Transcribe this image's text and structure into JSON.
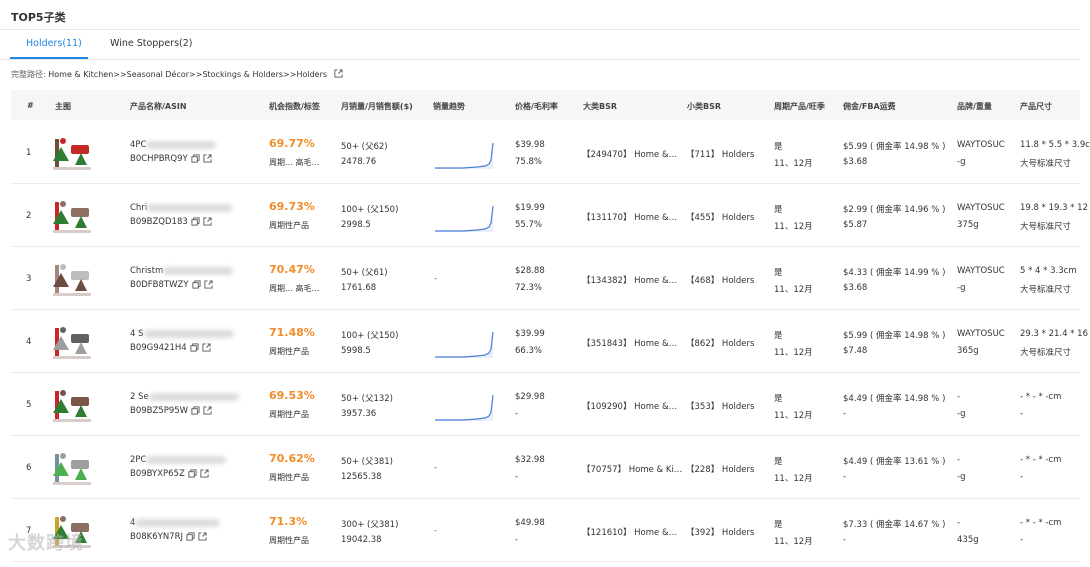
{
  "header": {
    "title": "TOP5子类"
  },
  "tabs": [
    {
      "label": "Holders(11)",
      "active": true
    },
    {
      "label": "Wine Stoppers(2)",
      "active": false
    }
  ],
  "path": {
    "label": "完整路径:",
    "value": "Home & Kitchen>>Seasonal Décor>>Stockings & Holders>>Holders"
  },
  "columns": [
    "#",
    "主图",
    "产品名称/ASIN",
    "机会指数/标签",
    "月销量/月销售额($)",
    "销量趋势",
    "价格/毛利率",
    "大类BSR",
    "小类BSR",
    "周期产品/旺季",
    "佣金/FBA运费",
    "品牌/重量",
    "产品尺寸"
  ],
  "rows": [
    {
      "index": "1",
      "name": "4PC",
      "asin": "B0CHPBRQ9Y",
      "score": "69.77%",
      "tag": "周期… 高毛…",
      "sales": "50+ (父62)",
      "revenue": "2478.76",
      "trend": true,
      "price": "$39.98",
      "margin": "75.8%",
      "bsr": "【249470】 Home &…",
      "sub_bsr": "【711】 Holders",
      "periodic": "是",
      "season": "11、12月",
      "fee": "$5.99 ( 佣金率 14.98 % )",
      "fba": "$3.68",
      "brand": "WAYTOSUC",
      "weight": "-g",
      "size": "11.8 * 5.5 * 3.9c",
      "size_class": "大号标准尺寸"
    },
    {
      "index": "2",
      "name": "Chri",
      "asin": "B09BZQD183",
      "score": "69.73%",
      "tag": "周期性产品",
      "sales": "100+ (父150)",
      "revenue": "2998.5",
      "trend": true,
      "price": "$19.99",
      "margin": "55.7%",
      "bsr": "【131170】 Home &…",
      "sub_bsr": "【455】 Holders",
      "periodic": "是",
      "season": "11、12月",
      "fee": "$2.99 ( 佣金率 14.96 % )",
      "fba": "$5.87",
      "brand": "WAYTOSUC",
      "weight": "375g",
      "size": "19.8 * 19.3 * 12",
      "size_class": "大号标准尺寸"
    },
    {
      "index": "3",
      "name": "Christm",
      "asin": "B0DFB8TWZY",
      "score": "70.47%",
      "tag": "周期… 高毛…",
      "sales": "50+ (父61)",
      "revenue": "1761.68",
      "trend": false,
      "price": "$28.88",
      "margin": "72.3%",
      "bsr": "【134382】 Home &…",
      "sub_bsr": "【468】 Holders",
      "periodic": "是",
      "season": "11、12月",
      "fee": "$4.33 ( 佣金率 14.99 % )",
      "fba": "$3.68",
      "brand": "WAYTOSUC",
      "weight": "-g",
      "size": "5 * 4 * 3.3cm",
      "size_class": "大号标准尺寸"
    },
    {
      "index": "4",
      "name": "4 S",
      "asin": "B09G9421H4",
      "score": "71.48%",
      "tag": "周期性产品",
      "sales": "100+ (父150)",
      "revenue": "5998.5",
      "trend": true,
      "price": "$39.99",
      "margin": "66.3%",
      "bsr": "【351843】 Home &…",
      "sub_bsr": "【862】 Holders",
      "periodic": "是",
      "season": "11、12月",
      "fee": "$5.99 ( 佣金率 14.98 % )",
      "fba": "$7.48",
      "brand": "WAYTOSUC",
      "weight": "365g",
      "size": "29.3 * 21.4 * 16",
      "size_class": "大号标准尺寸"
    },
    {
      "index": "5",
      "name": "2 Se",
      "asin": "B09BZ5P95W",
      "score": "69.53%",
      "tag": "周期性产品",
      "sales": "50+ (父132)",
      "revenue": "3957.36",
      "trend": true,
      "price": "$29.98",
      "margin": "-",
      "bsr": "【109290】 Home &…",
      "sub_bsr": "【353】 Holders",
      "periodic": "是",
      "season": "11、12月",
      "fee": "$4.49 ( 佣金率 14.98 % )",
      "fba": "-",
      "brand": "-",
      "weight": "-g",
      "size": "- * - * -cm",
      "size_class": "-"
    },
    {
      "index": "6",
      "name": "2PC",
      "asin": "B09BYXP65Z",
      "score": "70.62%",
      "tag": "周期性产品",
      "sales": "50+ (父381)",
      "revenue": "12565.38",
      "trend": false,
      "price": "$32.98",
      "margin": "-",
      "bsr": "【70757】 Home & Ki…",
      "sub_bsr": "【228】 Holders",
      "periodic": "是",
      "season": "11、12月",
      "fee": "$4.49 ( 佣金率 13.61 % )",
      "fba": "-",
      "brand": "-",
      "weight": "-g",
      "size": "- * - * -cm",
      "size_class": "-"
    },
    {
      "index": "7",
      "name": "4",
      "asin": "B08K6YN7RJ",
      "score": "71.3%",
      "tag": "周期性产品",
      "sales": "300+ (父381)",
      "revenue": "19042.38",
      "trend": false,
      "price": "$49.98",
      "margin": "-",
      "bsr": "【121610】 Home &…",
      "sub_bsr": "【392】 Holders",
      "periodic": "是",
      "season": "11、12月",
      "fee": "$7.33 ( 佣金率 14.67 % )",
      "fba": "-",
      "brand": "-",
      "weight": "435g",
      "size": "- * - * -cm",
      "size_class": "-"
    }
  ],
  "trend_dash": "-",
  "watermark": "大数跨境",
  "colors": {
    "accent": "#1e88e5",
    "score": "#f28c28",
    "trend_line": "#4a7fd8"
  }
}
